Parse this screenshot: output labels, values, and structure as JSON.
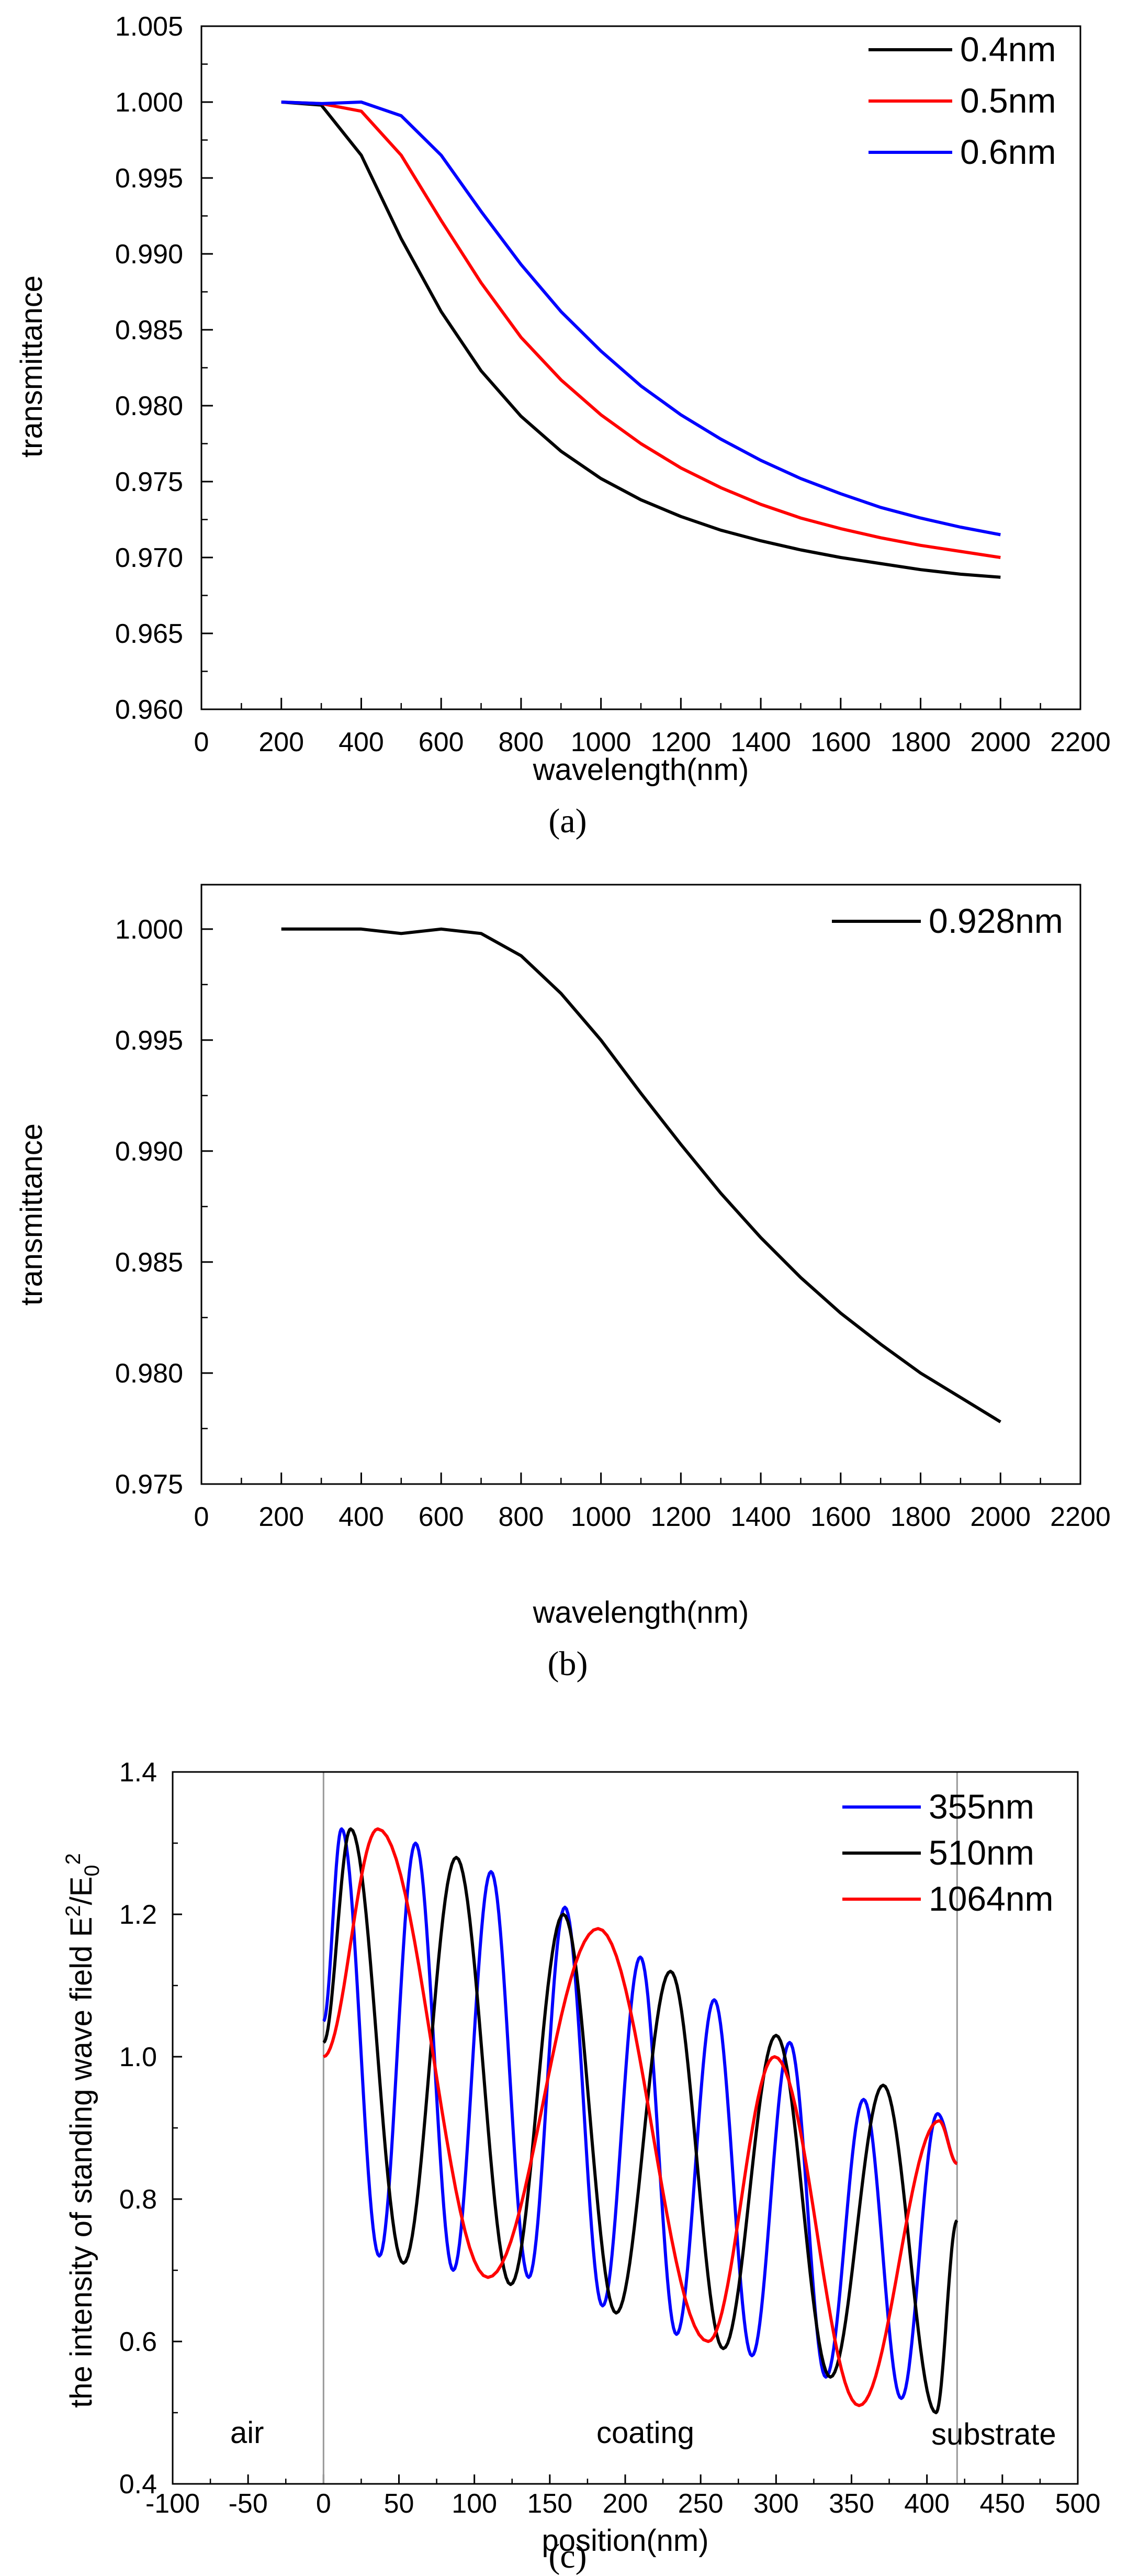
{
  "chart_data": [
    {
      "type": "line",
      "caption": "(a)",
      "xlabel": "wavelength(nm)",
      "ylabel": "transmittance",
      "xlim": [
        0,
        2200
      ],
      "ylim": [
        0.96,
        1.005
      ],
      "xticks": [
        0,
        200,
        400,
        600,
        800,
        1000,
        1200,
        1400,
        1600,
        1800,
        2000,
        2200
      ],
      "yticks": [
        0.96,
        0.965,
        0.97,
        0.975,
        0.98,
        0.985,
        0.99,
        0.995,
        1.0,
        1.005
      ],
      "xtick_labels": [
        "0",
        "200",
        "400",
        "600",
        "800",
        "1000",
        "1200",
        "1400",
        "1600",
        "1800",
        "2000",
        "2200"
      ],
      "ytick_labels": [
        "0.960",
        "0.965",
        "0.970",
        "0.975",
        "0.980",
        "0.985",
        "0.990",
        "0.995",
        "1.000",
        "1.005"
      ],
      "grid": false,
      "legend_position": "top-right",
      "x": [
        200,
        300,
        400,
        500,
        600,
        700,
        800,
        900,
        1000,
        1100,
        1200,
        1300,
        1400,
        1500,
        1600,
        1700,
        1800,
        1900,
        2000
      ],
      "series": [
        {
          "name": "0.4nm",
          "color": "#000000",
          "values": [
            1.0,
            0.9998,
            0.9965,
            0.991,
            0.9862,
            0.9823,
            0.9793,
            0.977,
            0.9752,
            0.9738,
            0.9727,
            0.9718,
            0.9711,
            0.9705,
            0.97,
            0.9696,
            0.9692,
            0.9689,
            0.9687
          ]
        },
        {
          "name": "0.5nm",
          "color": "#ff0000",
          "values": [
            1.0,
            0.9999,
            0.9994,
            0.9965,
            0.9922,
            0.9881,
            0.9845,
            0.9817,
            0.9794,
            0.9775,
            0.9759,
            0.9746,
            0.9735,
            0.9726,
            0.9719,
            0.9713,
            0.9708,
            0.9704,
            0.97
          ]
        },
        {
          "name": "0.6nm",
          "color": "#0000ff",
          "values": [
            1.0,
            0.9999,
            1.0,
            0.9991,
            0.9965,
            0.9928,
            0.9893,
            0.9862,
            0.9836,
            0.9813,
            0.9794,
            0.9778,
            0.9764,
            0.9752,
            0.9742,
            0.9733,
            0.9726,
            0.972,
            0.9715
          ]
        }
      ]
    },
    {
      "type": "line",
      "caption": "(b)",
      "xlabel": "wavelength(nm)",
      "ylabel": "transmittance",
      "xlim": [
        0,
        2200
      ],
      "ylim": [
        0.975,
        1.002
      ],
      "xticks": [
        0,
        200,
        400,
        600,
        800,
        1000,
        1200,
        1400,
        1600,
        1800,
        2000,
        2200
      ],
      "yticks": [
        0.975,
        0.98,
        0.985,
        0.99,
        0.995,
        1.0
      ],
      "xtick_labels": [
        "0",
        "200",
        "400",
        "600",
        "800",
        "1000",
        "1200",
        "1400",
        "1600",
        "1800",
        "2000",
        "2200"
      ],
      "ytick_labels": [
        "0.975",
        "0.980",
        "0.985",
        "0.990",
        "0.995",
        "1.000"
      ],
      "grid": false,
      "legend_position": "top-right",
      "x": [
        200,
        300,
        400,
        500,
        600,
        700,
        800,
        900,
        1000,
        1100,
        1200,
        1300,
        1400,
        1500,
        1600,
        1700,
        1800,
        1900,
        2000
      ],
      "series": [
        {
          "name": "0.928nm",
          "color": "#000000",
          "values": [
            1.0,
            1.0,
            1.0,
            0.9998,
            1.0,
            0.9998,
            0.9988,
            0.9971,
            0.995,
            0.9926,
            0.9903,
            0.9881,
            0.9861,
            0.9843,
            0.9827,
            0.9813,
            0.98,
            0.9789,
            0.9778
          ]
        }
      ]
    },
    {
      "type": "line",
      "caption": "(c)",
      "xlabel": "position(nm)",
      "ylabel": "the intensity of standing wave field E",
      "ylabel_sup1": "2",
      "ylabel_mid": "/E",
      "ylabel_sub": "0",
      "ylabel_sup2": "2",
      "xlim": [
        -100,
        500
      ],
      "ylim": [
        0.4,
        1.4
      ],
      "xticks": [
        -100,
        -50,
        0,
        50,
        100,
        150,
        200,
        250,
        300,
        350,
        400,
        450,
        500
      ],
      "yticks": [
        0.4,
        0.6,
        0.8,
        1.0,
        1.2,
        1.4
      ],
      "xtick_labels": [
        "-100",
        "-50",
        "0",
        "50",
        "100",
        "150",
        "200",
        "250",
        "300",
        "350",
        "400",
        "450",
        "500"
      ],
      "ytick_labels": [
        "0.4",
        "0.6",
        "0.8",
        "1.0",
        "1.2",
        "1.4"
      ],
      "grid": false,
      "legend_position": "top-right",
      "annotations": [
        "air",
        "coating",
        "substrate"
      ],
      "boundaries": [
        0,
        420
      ],
      "series": [
        {
          "name": "355nm",
          "color": "#0000ff",
          "x": [
            0,
            12,
            37,
            61,
            86,
            111,
            136,
            160,
            185,
            210,
            234,
            259,
            284,
            309,
            333,
            358,
            383,
            407,
            420
          ],
          "y": [
            1.05,
            1.32,
            0.72,
            1.3,
            0.7,
            1.26,
            0.69,
            1.21,
            0.65,
            1.14,
            0.61,
            1.08,
            0.58,
            1.02,
            0.55,
            0.94,
            0.52,
            0.92,
            0.85
          ]
        },
        {
          "name": "510nm",
          "color": "#000000",
          "x": [
            0,
            18,
            53,
            88,
            124,
            159,
            194,
            230,
            265,
            300,
            336,
            371,
            406,
            420
          ],
          "y": [
            1.02,
            1.32,
            0.71,
            1.28,
            0.68,
            1.2,
            0.64,
            1.12,
            0.59,
            1.03,
            0.55,
            0.96,
            0.5,
            0.77
          ]
        },
        {
          "name": "1064nm",
          "color": "#ff0000",
          "x": [
            0,
            36,
            109,
            182,
            255,
            299,
            355,
            408,
            420
          ],
          "y": [
            1.0,
            1.32,
            0.69,
            1.18,
            0.6,
            1.0,
            0.51,
            0.91,
            0.85
          ]
        }
      ]
    }
  ]
}
